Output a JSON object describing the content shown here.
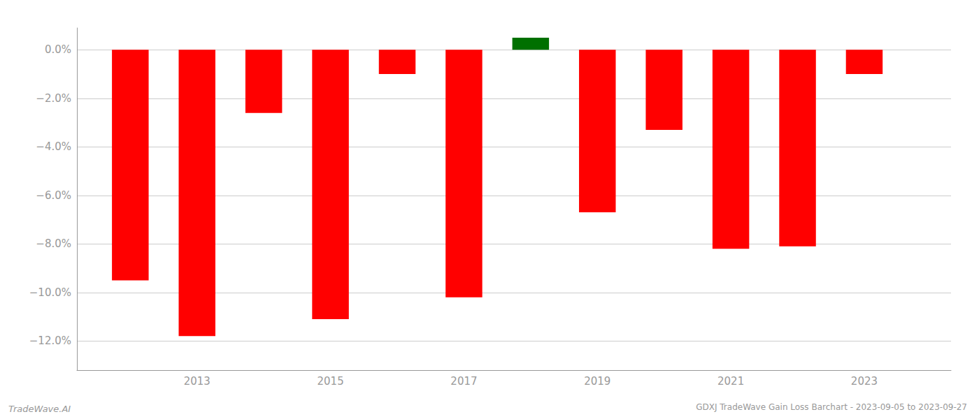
{
  "chart_data": {
    "type": "bar",
    "title": "GDXJ TradeWave Gain Loss Barchart - 2023-09-05 to 2023-09-27",
    "annotations": [
      "TradeWave.AI"
    ],
    "x": [
      2012,
      2013,
      2014,
      2015,
      2016,
      2017,
      2018,
      2019,
      2020,
      2021,
      2022,
      2023
    ],
    "values": [
      -9.5,
      -11.8,
      -2.6,
      -11.1,
      -1.0,
      -10.2,
      0.5,
      -6.7,
      -3.3,
      -8.2,
      -8.1,
      -1.0
    ],
    "colors": [
      "#ff0000",
      "#ff0000",
      "#ff0000",
      "#ff0000",
      "#ff0000",
      "#ff0000",
      "#007000",
      "#ff0000",
      "#ff0000",
      "#ff0000",
      "#ff0000",
      "#ff0000"
    ],
    "xlim": [
      2011.2,
      2024.3
    ],
    "xticks": [
      2013,
      2015,
      2017,
      2019,
      2021,
      2023
    ],
    "ylim": [
      -13.2,
      0.9
    ],
    "yticks": [
      {
        "value": 0.0,
        "label": "0.0%"
      },
      {
        "value": -2.0,
        "label": "−2.0%"
      },
      {
        "value": -4.0,
        "label": "−4.0%"
      },
      {
        "value": -6.0,
        "label": "−6.0%"
      },
      {
        "value": -8.0,
        "label": "−8.0%"
      },
      {
        "value": -10.0,
        "label": "−10.0%"
      },
      {
        "value": -12.0,
        "label": "−12.0%"
      }
    ],
    "grid": true
  }
}
